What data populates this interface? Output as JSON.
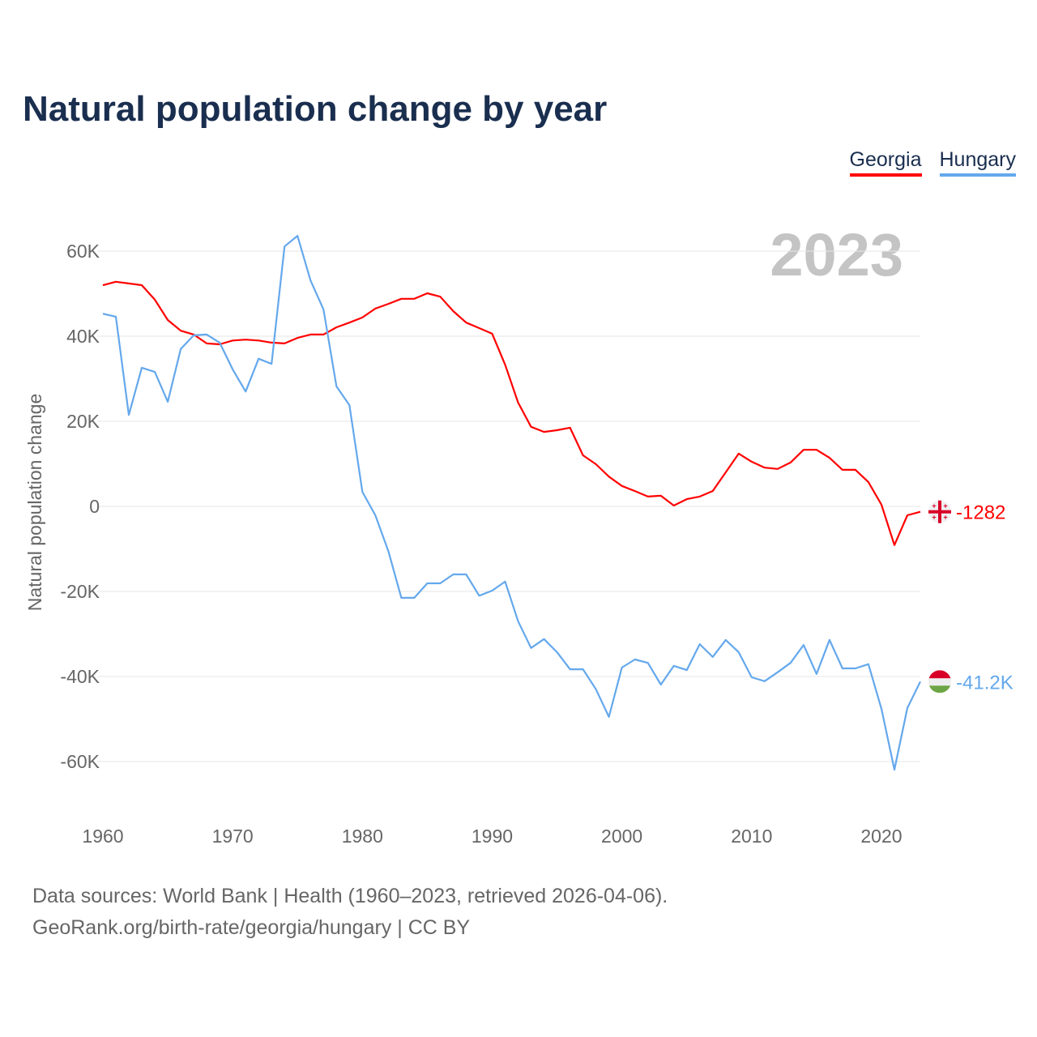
{
  "chart_data": {
    "type": "line",
    "title": "Natural population change by year",
    "ylabel": "Natural population change",
    "xlabel": "",
    "year_label": "2023",
    "ylim": [
      -70000,
      70000
    ],
    "xlim": [
      1960,
      2023
    ],
    "yticks": [
      {
        "v": 60000,
        "label": "60K"
      },
      {
        "v": 40000,
        "label": "40K"
      },
      {
        "v": 20000,
        "label": "20K"
      },
      {
        "v": 0,
        "label": "0"
      },
      {
        "v": -20000,
        "label": "-20K"
      },
      {
        "v": -40000,
        "label": "-40K"
      },
      {
        "v": -60000,
        "label": "-60K"
      }
    ],
    "xticks": [
      {
        "v": 1960,
        "label": "1960"
      },
      {
        "v": 1970,
        "label": "1970"
      },
      {
        "v": 1980,
        "label": "1980"
      },
      {
        "v": 1990,
        "label": "1990"
      },
      {
        "v": 2000,
        "label": "2000"
      },
      {
        "v": 2010,
        "label": "2010"
      },
      {
        "v": 2020,
        "label": "2020"
      }
    ],
    "grid": true,
    "legend_position": "top-right",
    "x_start": 1960,
    "series": [
      {
        "name": "Georgia",
        "color": "#ff0000",
        "end_label": "-1282",
        "flag": "georgia-flag",
        "values": [
          52000,
          52800,
          52400,
          52000,
          48600,
          43800,
          41300,
          40400,
          38300,
          38100,
          39000,
          39200,
          39000,
          38500,
          38300,
          39600,
          40400,
          40400,
          42100,
          43200,
          44400,
          46500,
          47600,
          48800,
          48800,
          50100,
          49300,
          45900,
          43200,
          41900,
          40600,
          33300,
          24400,
          18700,
          17500,
          17900,
          18500,
          12000,
          9900,
          7000,
          4800,
          3600,
          2300,
          2500,
          200,
          1700,
          2300,
          3600,
          8000,
          12400,
          10500,
          9100,
          8800,
          10300,
          13300,
          13300,
          11400,
          8600,
          8600,
          5700,
          400,
          -9100,
          -2100,
          -1282
        ]
      },
      {
        "name": "Hungary",
        "color": "#64a8ec",
        "end_label": "-41.2K",
        "flag": "hungary-flag",
        "values": [
          45300,
          44600,
          21500,
          32600,
          31600,
          24600,
          37000,
          40200,
          40400,
          38500,
          32200,
          27000,
          34700,
          33500,
          61100,
          63600,
          53100,
          46300,
          28200,
          23800,
          3400,
          -2100,
          -10500,
          -21500,
          -21500,
          -18100,
          -18100,
          -16000,
          -16000,
          -21000,
          -19800,
          -17700,
          -27000,
          -33300,
          -31200,
          -34300,
          -38300,
          -38300,
          -43000,
          -49500,
          -37900,
          -36000,
          -36800,
          -41900,
          -37500,
          -38500,
          -32400,
          -35400,
          -31400,
          -34300,
          -40200,
          -41100,
          -39000,
          -36800,
          -32600,
          -39400,
          -31400,
          -38100,
          -38100,
          -37100,
          -47600,
          -61900,
          -47400,
          -41200
        ]
      }
    ]
  },
  "footer": {
    "line1": "Data sources: World Bank | Health (1960–2023, retrieved 2026-04-06).",
    "line2": "GeoRank.org/birth-rate/georgia/hungary | CC BY"
  }
}
